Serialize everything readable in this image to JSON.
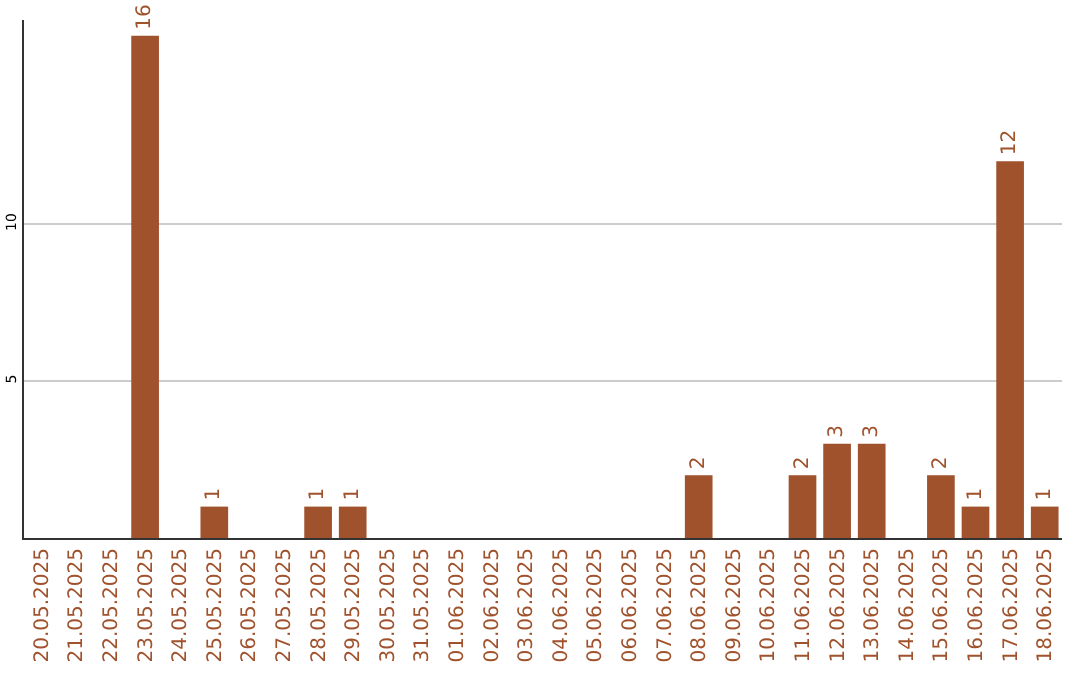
{
  "chart_data": {
    "type": "bar",
    "categories": [
      "20.05.2025",
      "21.05.2025",
      "22.05.2025",
      "23.05.2025",
      "24.05.2025",
      "25.05.2025",
      "26.05.2025",
      "27.05.2025",
      "28.05.2025",
      "29.05.2025",
      "30.05.2025",
      "31.05.2025",
      "01.06.2025",
      "02.06.2025",
      "03.06.2025",
      "04.06.2025",
      "05.06.2025",
      "06.06.2025",
      "07.06.2025",
      "08.06.2025",
      "09.06.2025",
      "10.06.2025",
      "11.06.2025",
      "12.06.2025",
      "13.06.2025",
      "14.06.2025",
      "15.06.2025",
      "16.06.2025",
      "17.06.2025",
      "18.06.2025"
    ],
    "values": [
      0,
      0,
      0,
      16,
      0,
      1,
      0,
      0,
      1,
      1,
      0,
      0,
      0,
      0,
      0,
      0,
      0,
      0,
      0,
      2,
      0,
      0,
      2,
      3,
      3,
      0,
      2,
      1,
      12,
      1
    ],
    "value_labels": [
      null,
      null,
      null,
      "16",
      null,
      "1",
      null,
      null,
      "1",
      "1",
      null,
      null,
      null,
      null,
      null,
      null,
      null,
      null,
      null,
      "2",
      null,
      null,
      "2",
      "3",
      "3",
      null,
      "2",
      "1",
      "12",
      "1"
    ],
    "color": "#a0522d",
    "ylim": [
      0,
      16.5
    ],
    "yticks": [
      5,
      10
    ],
    "grid": "y",
    "legend": false
  }
}
